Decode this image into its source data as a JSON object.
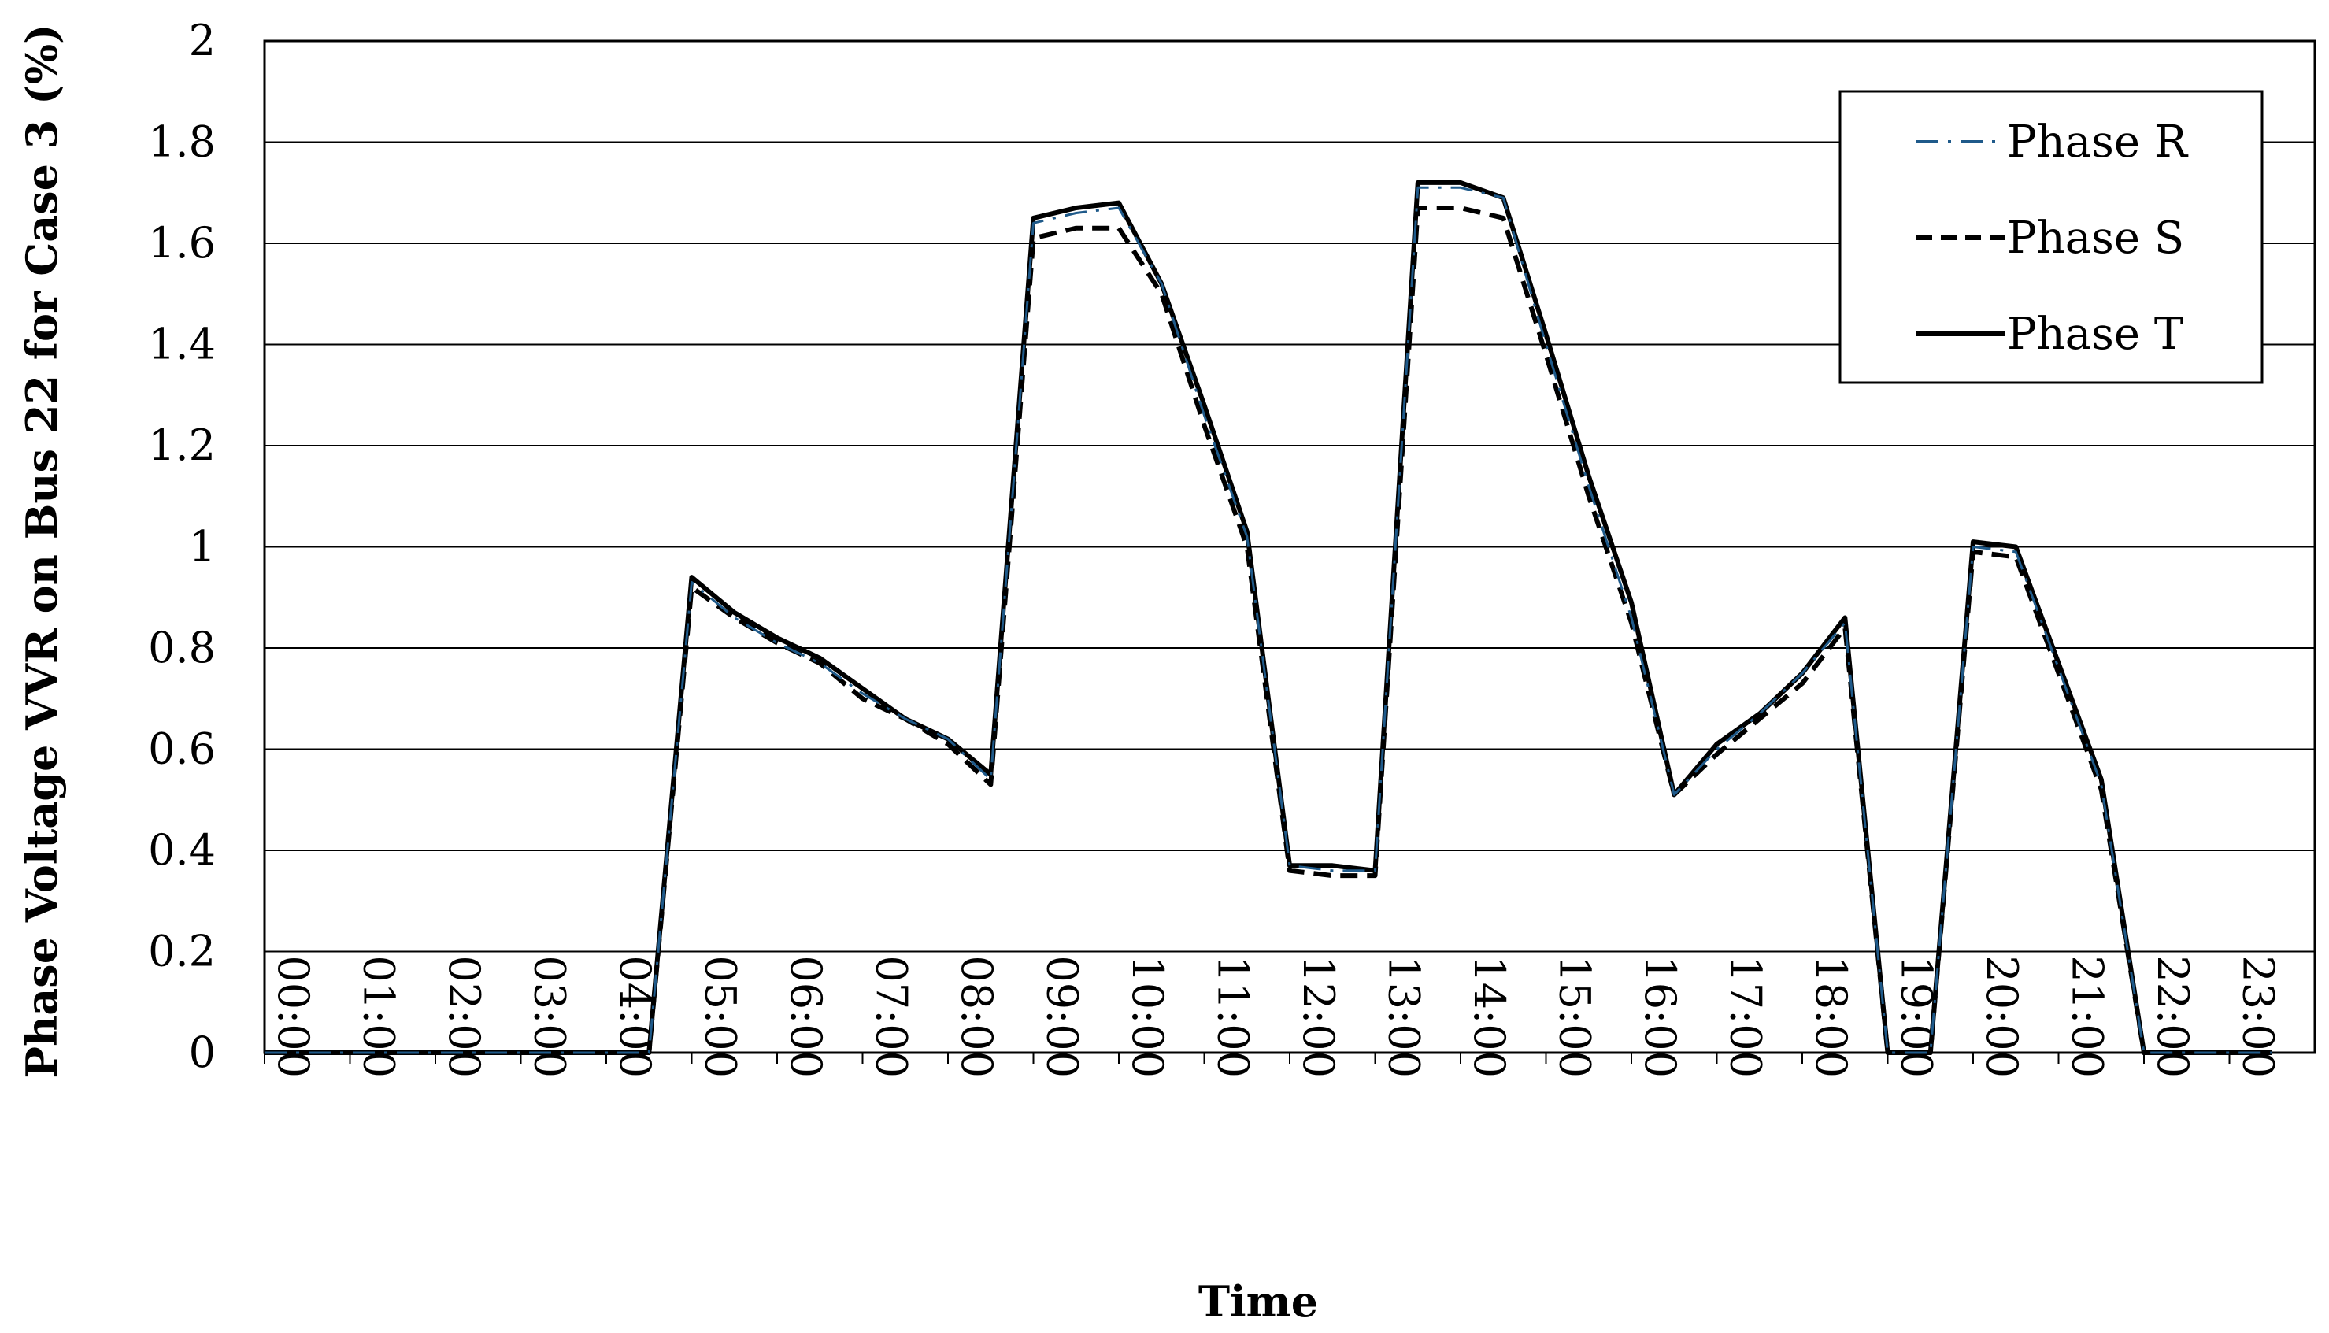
{
  "chart_data": {
    "type": "line",
    "title": "",
    "xlabel": "Time",
    "ylabel": "Phase Voltage VVR on  Bus 22 for Case 3 (%)",
    "ylim": [
      0,
      2
    ],
    "yticks": [
      "0",
      "0.2",
      "0.4",
      "0.6",
      "0.8",
      "1",
      "1.2",
      "1.4",
      "1.6",
      "1.8",
      "2"
    ],
    "xticks": [
      "00:00",
      "01:00",
      "02:00",
      "03:00",
      "04:00",
      "05:00",
      "06:00",
      "07:00",
      "08:00",
      "09:00",
      "10:00",
      "11:00",
      "12:00",
      "13:00",
      "14:00",
      "15:00",
      "16:00",
      "17:00",
      "18:00",
      "19:00",
      "20:00",
      "21:00",
      "22:00",
      "23:00"
    ],
    "grid": "horizontal",
    "legend_position": "top-right",
    "x": [
      "00:00",
      "00:30",
      "01:00",
      "01:30",
      "02:00",
      "02:30",
      "03:00",
      "03:30",
      "04:00",
      "04:30",
      "05:00",
      "05:30",
      "06:00",
      "06:30",
      "07:00",
      "07:30",
      "08:00",
      "08:30",
      "09:00",
      "09:30",
      "10:00",
      "10:30",
      "11:00",
      "11:30",
      "12:00",
      "12:30",
      "13:00",
      "13:30",
      "14:00",
      "14:30",
      "15:00",
      "15:30",
      "16:00",
      "16:30",
      "17:00",
      "17:30",
      "18:00",
      "18:30",
      "19:00",
      "19:30",
      "20:00",
      "20:30",
      "21:00",
      "21:30",
      "22:00",
      "22:30",
      "23:00",
      "23:30"
    ],
    "series": [
      {
        "name": "Phase R",
        "color": "#1f5a8a",
        "style": "dash-dot",
        "values": [
          0,
          0,
          0,
          0,
          0,
          0,
          0,
          0,
          0,
          0,
          0.93,
          0.86,
          0.81,
          0.77,
          0.71,
          0.66,
          0.62,
          0.54,
          1.64,
          1.66,
          1.67,
          1.52,
          1.26,
          1.02,
          0.37,
          0.36,
          0.36,
          1.71,
          1.71,
          1.69,
          1.4,
          1.12,
          0.86,
          0.51,
          0.6,
          0.67,
          0.75,
          0.85,
          0,
          0,
          1.0,
          0.99,
          0.76,
          0.53,
          0,
          0,
          0,
          0
        ]
      },
      {
        "name": "Phase S",
        "color": "#000000",
        "style": "dashed",
        "values": [
          0,
          0,
          0,
          0,
          0,
          0,
          0,
          0,
          0,
          0,
          0.92,
          0.86,
          0.81,
          0.77,
          0.7,
          0.66,
          0.61,
          0.53,
          1.61,
          1.63,
          1.63,
          1.5,
          1.24,
          1.0,
          0.36,
          0.35,
          0.35,
          1.67,
          1.67,
          1.65,
          1.38,
          1.1,
          0.85,
          0.51,
          0.59,
          0.66,
          0.73,
          0.84,
          0,
          0,
          0.99,
          0.98,
          0.75,
          0.52,
          0,
          0,
          0,
          0
        ]
      },
      {
        "name": "Phase T",
        "color": "#000000",
        "style": "solid",
        "values": [
          0,
          0,
          0,
          0,
          0,
          0,
          0,
          0,
          0,
          0,
          0.94,
          0.87,
          0.82,
          0.78,
          0.72,
          0.66,
          0.62,
          0.55,
          1.65,
          1.67,
          1.68,
          1.52,
          1.28,
          1.03,
          0.37,
          0.37,
          0.36,
          1.72,
          1.72,
          1.69,
          1.42,
          1.14,
          0.89,
          0.51,
          0.61,
          0.67,
          0.75,
          0.86,
          0,
          0,
          1.01,
          1.0,
          0.77,
          0.54,
          0,
          0,
          0,
          0
        ]
      }
    ]
  }
}
